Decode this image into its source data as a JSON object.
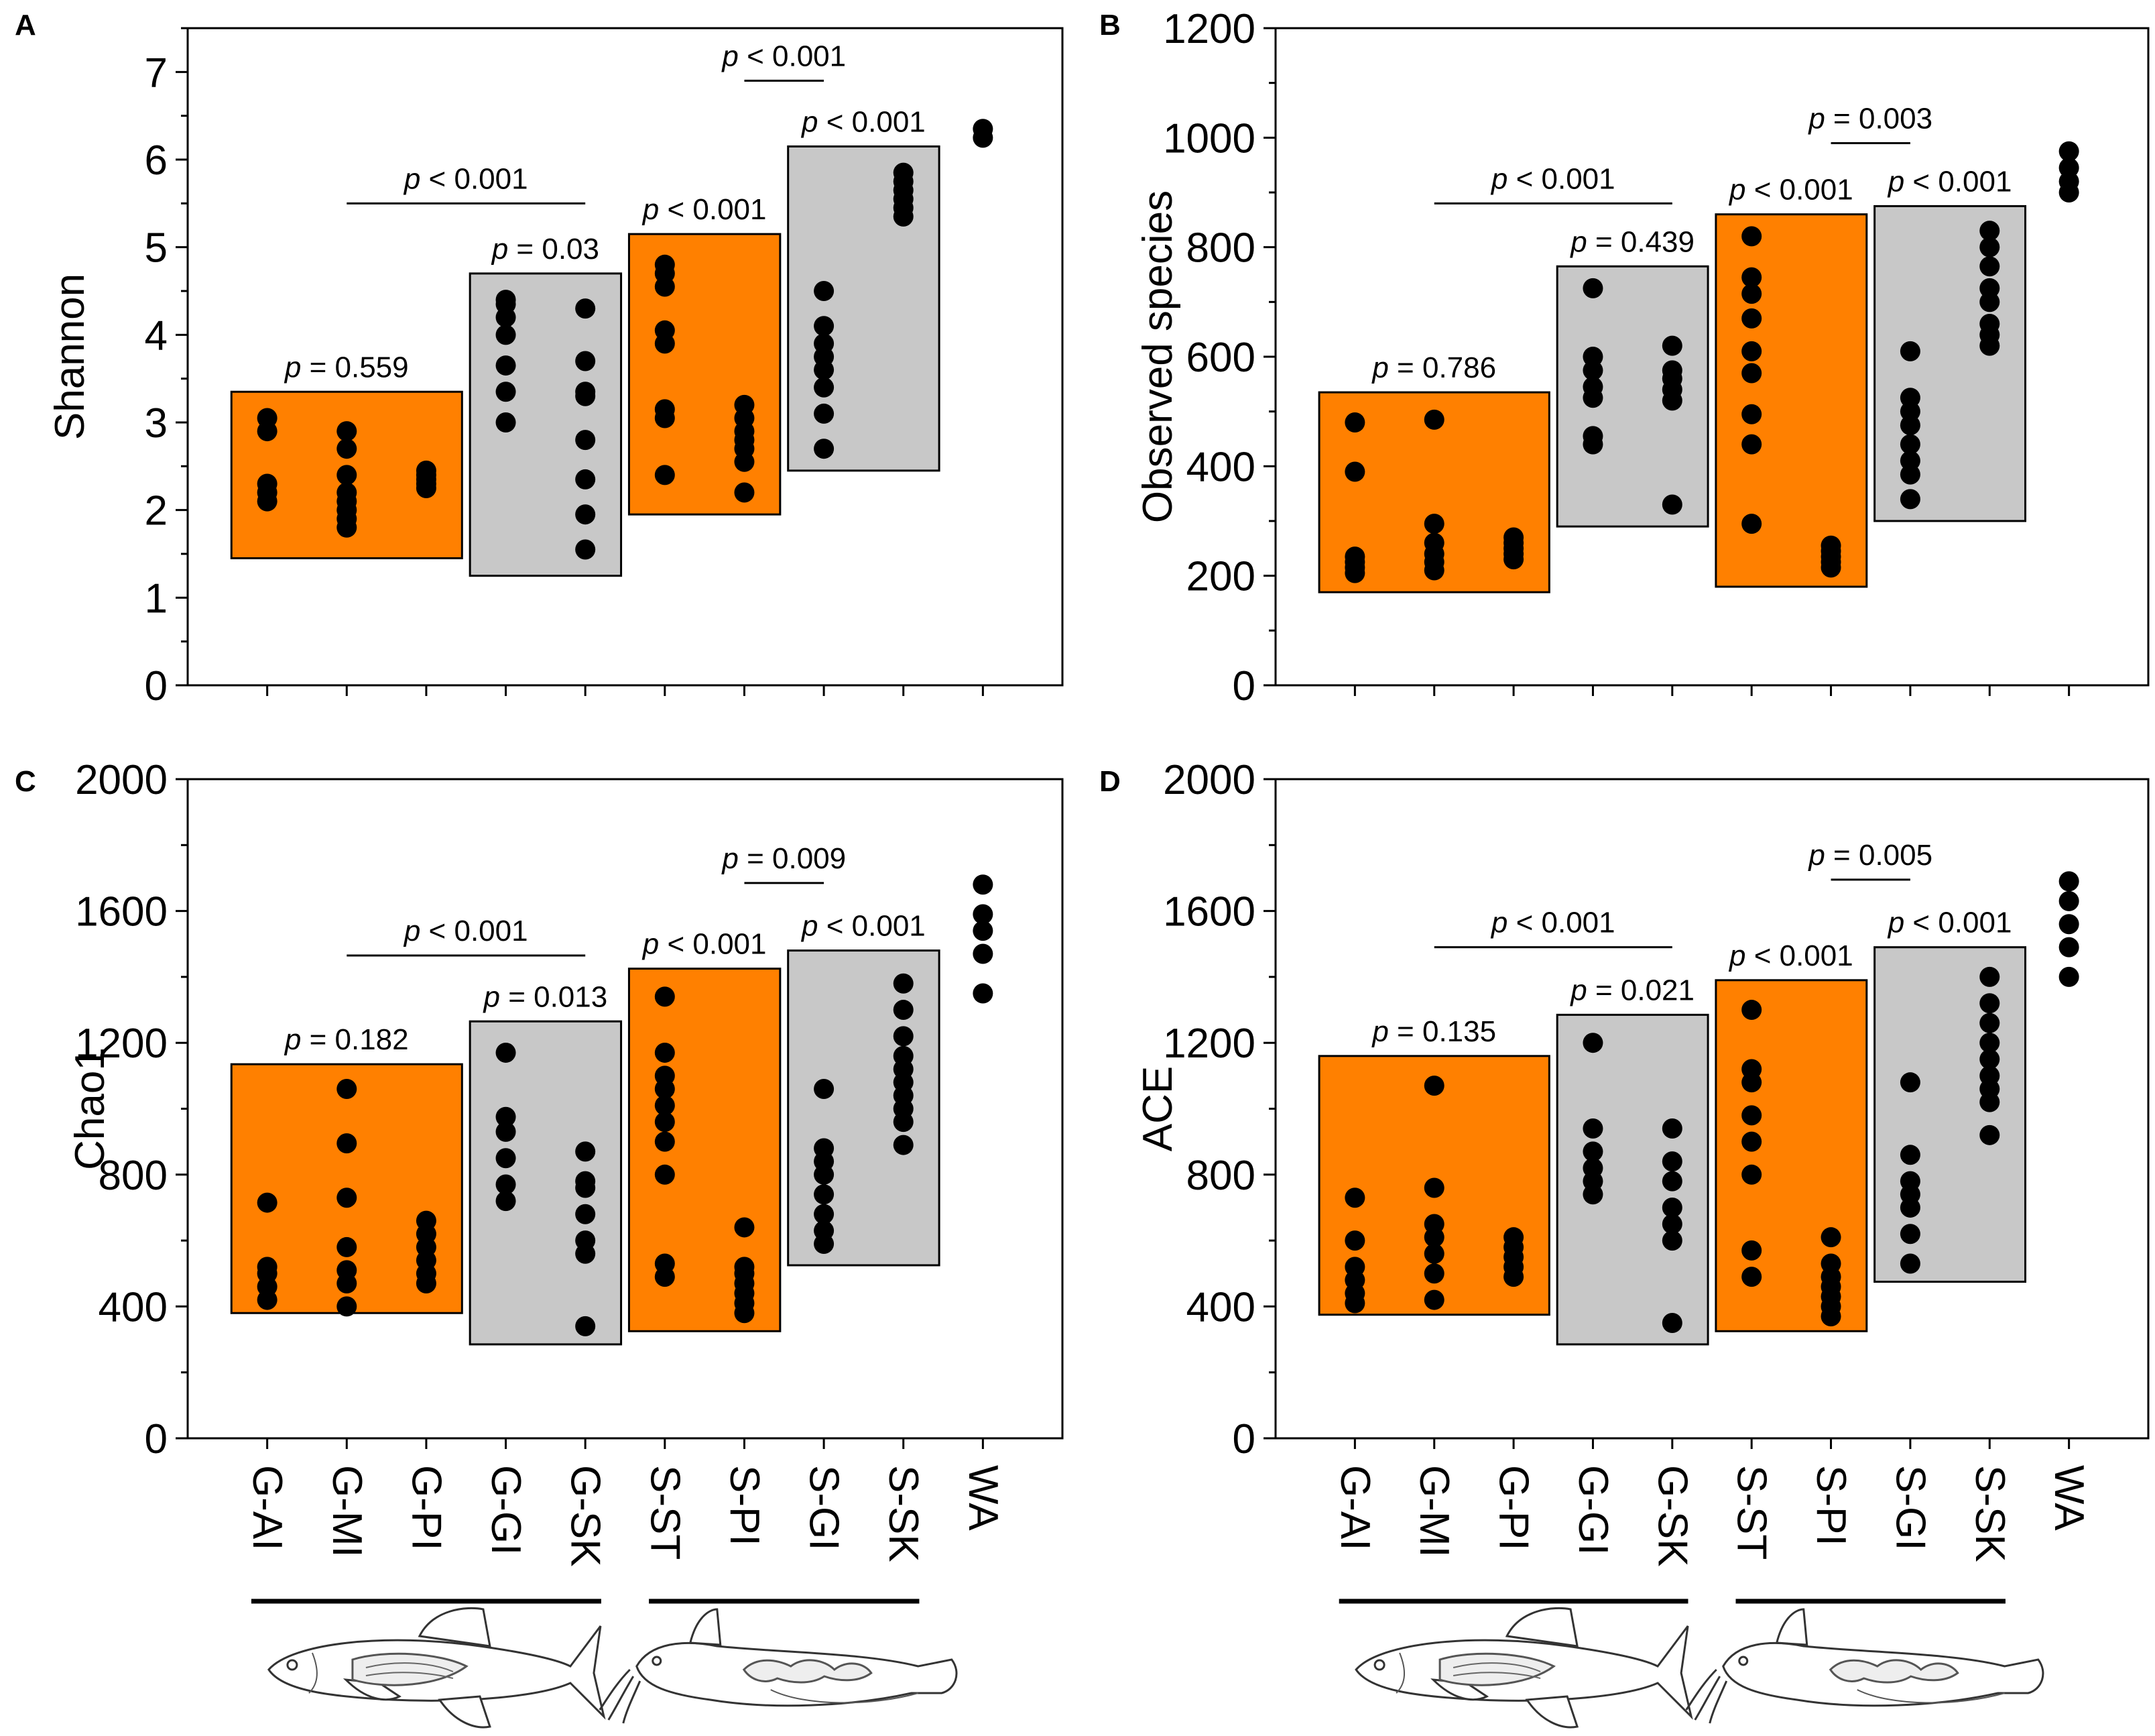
{
  "colors": {
    "orange": "#FF8000",
    "gray": "#C8C8C8",
    "dot": "#000000",
    "frame": "#000000"
  },
  "icons": [
    "fish-icon",
    "catfish-icon"
  ],
  "chart_data": [
    {
      "panel": "A",
      "type": "scatter",
      "ylabel": "Shannon",
      "ylim": [
        0,
        7.5
      ],
      "yticks": [
        0,
        1,
        2,
        3,
        4,
        5,
        6,
        7
      ],
      "ytick_labels": [
        "0",
        "1",
        "2",
        "3",
        "4",
        "5",
        "6",
        "7"
      ],
      "categories": [
        "G-AI",
        "G-MI",
        "G-PI",
        "G-GI",
        "G-SK",
        "S-ST",
        "S-PI",
        "S-GI",
        "S-SK",
        "WA"
      ],
      "series": [
        {
          "name": "G-AI",
          "values": [
            2.1,
            2.2,
            2.3,
            2.9,
            3.05
          ]
        },
        {
          "name": "G-MI",
          "values": [
            1.8,
            1.9,
            2.0,
            2.1,
            2.2,
            2.4,
            2.7,
            2.9
          ]
        },
        {
          "name": "G-PI",
          "values": [
            2.25,
            2.3,
            2.35,
            2.4,
            2.45
          ]
        },
        {
          "name": "G-GI",
          "values": [
            3.0,
            3.35,
            3.65,
            4.0,
            4.2,
            4.35,
            4.4
          ]
        },
        {
          "name": "G-SK",
          "values": [
            1.55,
            1.95,
            2.35,
            2.8,
            3.3,
            3.35,
            3.7,
            4.3
          ]
        },
        {
          "name": "S-ST",
          "values": [
            2.4,
            3.05,
            3.15,
            3.9,
            4.05,
            4.55,
            4.7,
            4.8
          ]
        },
        {
          "name": "S-PI",
          "values": [
            2.2,
            2.55,
            2.7,
            2.8,
            2.9,
            3.05,
            3.2
          ]
        },
        {
          "name": "S-GI",
          "values": [
            2.7,
            3.1,
            3.4,
            3.6,
            3.75,
            3.9,
            4.1,
            4.5
          ]
        },
        {
          "name": "S-SK",
          "values": [
            5.35,
            5.45,
            5.55,
            5.65,
            5.75,
            5.85
          ]
        },
        {
          "name": "WA",
          "values": [
            6.25,
            6.35
          ]
        }
      ],
      "boxes": [
        {
          "from": "G-AI",
          "to": "G-PI",
          "y_low": 1.45,
          "y_high": 3.35,
          "color": "orange",
          "label": "p = 0.559"
        },
        {
          "from": "G-GI",
          "to": "G-SK",
          "y_low": 1.25,
          "y_high": 4.7,
          "color": "gray",
          "label": "p = 0.03"
        },
        {
          "from": "S-ST",
          "to": "S-PI",
          "y_low": 1.95,
          "y_high": 5.15,
          "color": "orange",
          "label": "p < 0.001"
        },
        {
          "from": "S-GI",
          "to": "S-SK",
          "y_low": 2.45,
          "y_high": 6.15,
          "color": "gray",
          "label": "p < 0.001"
        }
      ],
      "brackets": [
        {
          "from": "G-MI",
          "to": "G-SK",
          "y": 5.5,
          "label": "p < 0.001"
        },
        {
          "from": "S-PI",
          "to": "S-GI",
          "y": 6.9,
          "label": "p < 0.001"
        }
      ]
    },
    {
      "panel": "B",
      "type": "scatter",
      "ylabel": "Observed species",
      "ylim": [
        0,
        1200
      ],
      "yticks": [
        0,
        200,
        400,
        600,
        800,
        1000,
        1200
      ],
      "ytick_labels": [
        "0",
        "200",
        "400",
        "600",
        "800",
        "1000",
        "1200"
      ],
      "categories": [
        "G-AI",
        "G-MI",
        "G-PI",
        "G-GI",
        "G-SK",
        "S-ST",
        "S-PI",
        "S-GI",
        "S-SK",
        "WA"
      ],
      "series": [
        {
          "name": "G-AI",
          "values": [
            205,
            215,
            225,
            235,
            390,
            480
          ]
        },
        {
          "name": "G-MI",
          "values": [
            210,
            225,
            240,
            260,
            295,
            485
          ]
        },
        {
          "name": "G-PI",
          "values": [
            230,
            240,
            250,
            260,
            270
          ]
        },
        {
          "name": "G-GI",
          "values": [
            440,
            455,
            525,
            545,
            575,
            600,
            725
          ]
        },
        {
          "name": "G-SK",
          "values": [
            330,
            520,
            540,
            560,
            575,
            620
          ]
        },
        {
          "name": "S-ST",
          "values": [
            295,
            440,
            495,
            570,
            610,
            670,
            715,
            745,
            820
          ]
        },
        {
          "name": "S-PI",
          "values": [
            215,
            225,
            235,
            245,
            255
          ]
        },
        {
          "name": "S-GI",
          "values": [
            340,
            385,
            410,
            440,
            475,
            500,
            525,
            610
          ]
        },
        {
          "name": "S-SK",
          "values": [
            620,
            640,
            660,
            700,
            725,
            765,
            800,
            830
          ]
        },
        {
          "name": "WA",
          "values": [
            900,
            920,
            945,
            975
          ]
        }
      ],
      "boxes": [
        {
          "from": "G-AI",
          "to": "G-PI",
          "y_low": 170,
          "y_high": 535,
          "color": "orange",
          "label": "p = 0.786"
        },
        {
          "from": "G-GI",
          "to": "G-SK",
          "y_low": 290,
          "y_high": 765,
          "color": "gray",
          "label": "p = 0.439"
        },
        {
          "from": "S-ST",
          "to": "S-PI",
          "y_low": 180,
          "y_high": 860,
          "color": "orange",
          "label": "p < 0.001"
        },
        {
          "from": "S-GI",
          "to": "S-SK",
          "y_low": 300,
          "y_high": 875,
          "color": "gray",
          "label": "p < 0.001"
        }
      ],
      "brackets": [
        {
          "from": "G-MI",
          "to": "G-SK",
          "y": 880,
          "label": "p < 0.001"
        },
        {
          "from": "S-PI",
          "to": "S-GI",
          "y": 990,
          "label": "p = 0.003"
        }
      ]
    },
    {
      "panel": "C",
      "type": "scatter",
      "ylabel": "Chao1",
      "ylim": [
        0,
        2000
      ],
      "yticks": [
        0,
        400,
        800,
        1200,
        1600,
        2000
      ],
      "ytick_labels": [
        "0",
        "400",
        "800",
        "1200",
        "1600",
        "2000"
      ],
      "categories": [
        "G-AI",
        "G-MI",
        "G-PI",
        "G-GI",
        "G-SK",
        "S-ST",
        "S-PI",
        "S-GI",
        "S-SK",
        "WA"
      ],
      "series": [
        {
          "name": "G-AI",
          "values": [
            420,
            460,
            500,
            520,
            715
          ]
        },
        {
          "name": "G-MI",
          "values": [
            400,
            470,
            510,
            580,
            730,
            895,
            1060
          ]
        },
        {
          "name": "G-PI",
          "values": [
            470,
            500,
            540,
            580,
            620,
            660
          ]
        },
        {
          "name": "G-GI",
          "values": [
            720,
            770,
            850,
            930,
            975,
            1170
          ]
        },
        {
          "name": "G-SK",
          "values": [
            340,
            560,
            600,
            680,
            760,
            780,
            870
          ]
        },
        {
          "name": "S-ST",
          "values": [
            490,
            530,
            800,
            900,
            960,
            1010,
            1060,
            1100,
            1170,
            1340
          ]
        },
        {
          "name": "S-PI",
          "values": [
            380,
            410,
            440,
            470,
            500,
            520,
            640
          ]
        },
        {
          "name": "S-GI",
          "values": [
            590,
            630,
            680,
            740,
            800,
            840,
            880,
            1060
          ]
        },
        {
          "name": "S-SK",
          "values": [
            890,
            960,
            1000,
            1040,
            1080,
            1120,
            1160,
            1220,
            1300,
            1380
          ]
        },
        {
          "name": "WA",
          "values": [
            1350,
            1470,
            1540,
            1590,
            1680
          ]
        }
      ],
      "boxes": [
        {
          "from": "G-AI",
          "to": "G-PI",
          "y_low": 380,
          "y_high": 1135,
          "color": "orange",
          "label": "p = 0.182"
        },
        {
          "from": "G-GI",
          "to": "G-SK",
          "y_low": 285,
          "y_high": 1265,
          "color": "gray",
          "label": "p = 0.013"
        },
        {
          "from": "S-ST",
          "to": "S-PI",
          "y_low": 325,
          "y_high": 1425,
          "color": "orange",
          "label": "p < 0.001"
        },
        {
          "from": "S-GI",
          "to": "S-SK",
          "y_low": 525,
          "y_high": 1480,
          "color": "gray",
          "label": "p < 0.001"
        }
      ],
      "brackets": [
        {
          "from": "G-MI",
          "to": "G-SK",
          "y": 1465,
          "label": "p < 0.001"
        },
        {
          "from": "S-PI",
          "to": "S-GI",
          "y": 1685,
          "label": "p = 0.009"
        }
      ]
    },
    {
      "panel": "D",
      "type": "scatter",
      "ylabel": "ACE",
      "ylim": [
        0,
        2000
      ],
      "yticks": [
        0,
        400,
        800,
        1200,
        1600,
        2000
      ],
      "ytick_labels": [
        "0",
        "400",
        "800",
        "1200",
        "1600",
        "2000"
      ],
      "categories": [
        "G-AI",
        "G-MI",
        "G-PI",
        "G-GI",
        "G-SK",
        "S-ST",
        "S-PI",
        "S-GI",
        "S-SK",
        "WA"
      ],
      "series": [
        {
          "name": "G-AI",
          "values": [
            410,
            440,
            480,
            520,
            600,
            730
          ]
        },
        {
          "name": "G-MI",
          "values": [
            420,
            500,
            560,
            610,
            650,
            760,
            1070
          ]
        },
        {
          "name": "G-PI",
          "values": [
            490,
            520,
            550,
            580,
            610
          ]
        },
        {
          "name": "G-GI",
          "values": [
            740,
            780,
            820,
            870,
            940,
            1200
          ]
        },
        {
          "name": "G-SK",
          "values": [
            350,
            600,
            650,
            700,
            780,
            840,
            940
          ]
        },
        {
          "name": "S-ST",
          "values": [
            490,
            570,
            800,
            900,
            980,
            1080,
            1120,
            1300
          ]
        },
        {
          "name": "S-PI",
          "values": [
            370,
            400,
            430,
            460,
            490,
            530,
            610
          ]
        },
        {
          "name": "S-GI",
          "values": [
            530,
            620,
            700,
            740,
            780,
            860,
            1080
          ]
        },
        {
          "name": "S-SK",
          "values": [
            920,
            1020,
            1060,
            1100,
            1150,
            1200,
            1260,
            1320,
            1400
          ]
        },
        {
          "name": "WA",
          "values": [
            1400,
            1490,
            1560,
            1630,
            1690
          ]
        }
      ],
      "boxes": [
        {
          "from": "G-AI",
          "to": "G-PI",
          "y_low": 375,
          "y_high": 1160,
          "color": "orange",
          "label": "p = 0.135"
        },
        {
          "from": "G-GI",
          "to": "G-SK",
          "y_low": 285,
          "y_high": 1285,
          "color": "gray",
          "label": "p = 0.021"
        },
        {
          "from": "S-ST",
          "to": "S-PI",
          "y_low": 325,
          "y_high": 1390,
          "color": "orange",
          "label": "p < 0.001"
        },
        {
          "from": "S-GI",
          "to": "S-SK",
          "y_low": 475,
          "y_high": 1490,
          "color": "gray",
          "label": "p < 0.001"
        }
      ],
      "brackets": [
        {
          "from": "G-MI",
          "to": "G-SK",
          "y": 1490,
          "label": "p < 0.001"
        },
        {
          "from": "S-PI",
          "to": "S-GI",
          "y": 1695,
          "label": "p = 0.005"
        }
      ]
    }
  ]
}
